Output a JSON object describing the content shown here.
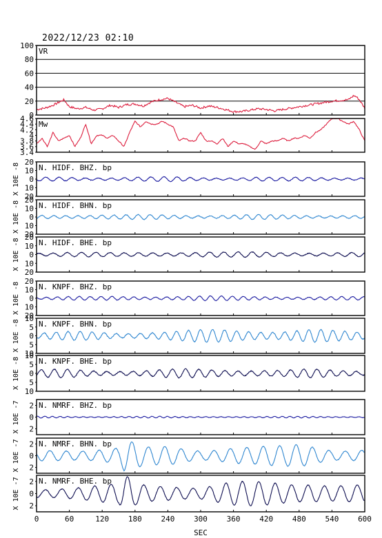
{
  "title": "2022/12/23 02:10",
  "colors": {
    "vr": "#dc1c3c",
    "mw": "#dc1c3c",
    "bhz": "#1a1aa0",
    "bhn": "#2e86d0",
    "bhe": "#0d0d50"
  },
  "chart_data": {
    "type": "line",
    "xlabel": "SEC",
    "xlim": [
      0,
      600
    ],
    "xticks": [
      0,
      60,
      120,
      180,
      240,
      300,
      360,
      420,
      480,
      540,
      600
    ],
    "panels": [
      {
        "name": "VR",
        "key": "vr",
        "color": "vr",
        "ylim": [
          0,
          100
        ],
        "yticks": [
          0,
          20,
          40,
          60,
          80,
          100
        ],
        "grid": true,
        "ylabel": "",
        "series": {
          "x": [
            0,
            15,
            30,
            45,
            50,
            60,
            75,
            90,
            105,
            120,
            135,
            150,
            165,
            180,
            195,
            210,
            225,
            240,
            255,
            270,
            285,
            300,
            315,
            330,
            345,
            360,
            375,
            390,
            405,
            420,
            435,
            450,
            465,
            480,
            495,
            510,
            525,
            540,
            555,
            570,
            580,
            585,
            590,
            595,
            600
          ],
          "y": [
            8,
            10,
            14,
            20,
            22,
            12,
            9,
            11,
            7,
            9,
            14,
            11,
            15,
            16,
            13,
            19,
            22,
            24,
            18,
            12,
            14,
            10,
            13,
            11,
            8,
            5,
            5,
            7,
            9,
            8,
            6,
            8,
            10,
            12,
            14,
            16,
            18,
            20,
            21,
            22,
            28,
            26,
            22,
            16,
            10
          ]
        }
      },
      {
        "name": "Mw",
        "key": "mw",
        "color": "mw",
        "ylim": [
          3.4,
          4.6
        ],
        "yticks": [
          3.4,
          3.6,
          3.8,
          4.0,
          4.2,
          4.4,
          4.6
        ],
        "grid": false,
        "ylabel": "",
        "series": {
          "x": [
            0,
            10,
            20,
            30,
            40,
            50,
            60,
            70,
            80,
            90,
            100,
            110,
            120,
            130,
            140,
            150,
            160,
            170,
            180,
            190,
            200,
            210,
            220,
            230,
            240,
            250,
            260,
            270,
            280,
            290,
            300,
            310,
            320,
            330,
            340,
            350,
            360,
            370,
            380,
            390,
            400,
            410,
            420,
            430,
            440,
            450,
            460,
            470,
            480,
            490,
            500,
            510,
            520,
            530,
            540,
            550,
            560,
            570,
            580,
            590,
            600
          ],
          "y": [
            3.7,
            3.9,
            3.6,
            4.1,
            3.8,
            3.9,
            4.0,
            3.6,
            3.9,
            4.4,
            3.7,
            4.0,
            4.0,
            3.9,
            4.0,
            3.8,
            3.6,
            4.1,
            4.5,
            4.3,
            4.5,
            4.4,
            4.4,
            4.5,
            4.4,
            4.3,
            3.8,
            3.9,
            3.8,
            3.8,
            4.1,
            3.8,
            3.8,
            3.7,
            3.9,
            3.6,
            3.8,
            3.7,
            3.7,
            3.6,
            3.5,
            3.8,
            3.7,
            3.8,
            3.8,
            3.9,
            3.8,
            3.9,
            3.9,
            4.0,
            3.9,
            4.1,
            4.2,
            4.4,
            4.6,
            4.6,
            4.5,
            4.4,
            4.5,
            4.2,
            3.8
          ]
        }
      },
      {
        "name": "N. HIDF. BHZ. bp",
        "key": "hidf_bhz",
        "color": "bhz",
        "ylim": [
          -20,
          20
        ],
        "yticks": [
          -20,
          -10,
          0,
          10,
          20
        ],
        "grid": false,
        "ylabel": "X 10E -8",
        "wave": {
          "x": [
            0,
            50,
            100,
            150,
            200,
            250,
            300,
            350,
            400,
            450,
            500,
            550,
            600
          ],
          "amp": [
            2,
            3,
            2.5,
            2,
            2.5,
            3,
            2.5,
            2,
            2.5,
            2,
            2.5,
            2,
            2.5
          ],
          "period": 24,
          "noise": 0.6
        }
      },
      {
        "name": "N. HIDF. BHN. bp",
        "key": "hidf_bhn",
        "color": "bhn",
        "ylim": [
          -20,
          20
        ],
        "yticks": [
          -20,
          -10,
          0,
          10,
          20
        ],
        "grid": false,
        "ylabel": "X 10E -8",
        "wave": {
          "x": [
            0,
            50,
            100,
            150,
            200,
            250,
            300,
            350,
            400,
            450,
            500,
            550,
            600
          ],
          "amp": [
            2.5,
            3,
            3,
            2.5,
            3,
            3,
            2.5,
            2.5,
            3,
            2.5,
            2.5,
            2.5,
            2
          ],
          "period": 22,
          "noise": 0.6
        }
      },
      {
        "name": "N. HIDF. BHE. bp",
        "key": "hidf_bhe",
        "color": "bhe",
        "ylim": [
          -20,
          20
        ],
        "yticks": [
          -20,
          -10,
          0,
          10,
          20
        ],
        "grid": false,
        "ylabel": "X 10E -8",
        "wave": {
          "x": [
            0,
            50,
            100,
            150,
            200,
            250,
            300,
            350,
            400,
            450,
            500,
            550,
            600
          ],
          "amp": [
            2.5,
            4,
            3,
            2,
            2.5,
            3.5,
            4,
            3,
            3,
            3,
            3,
            2.5,
            2.5
          ],
          "period": 26,
          "noise": 0.7
        }
      },
      {
        "name": "N. KNPF. BHZ. bp",
        "key": "knpf_bhz",
        "color": "bhz",
        "ylim": [
          -20,
          20
        ],
        "yticks": [
          -20,
          -10,
          0,
          10,
          20
        ],
        "grid": false,
        "ylabel": "X 10E -8",
        "wave": {
          "x": [
            0,
            50,
            100,
            150,
            200,
            250,
            300,
            350,
            400,
            450,
            500,
            550,
            600
          ],
          "amp": [
            2,
            2.5,
            2,
            2.5,
            2.5,
            3,
            3,
            2.5,
            2.5,
            2.5,
            2,
            2,
            2
          ],
          "period": 20,
          "noise": 0.5
        }
      },
      {
        "name": "N. KNPF. BHN. bp",
        "key": "knpf_bhn",
        "color": "bhn",
        "ylim": [
          -10,
          10
        ],
        "yticks": [
          -10,
          -5,
          0,
          5,
          10
        ],
        "grid": false,
        "ylabel": "X 10E -8",
        "wave": {
          "x": [
            0,
            50,
            100,
            150,
            200,
            250,
            300,
            350,
            400,
            450,
            500,
            550,
            600
          ],
          "amp": [
            2,
            2.5,
            2.5,
            2,
            3,
            3,
            3.5,
            4,
            4,
            3.5,
            4,
            3,
            2.5
          ],
          "period": 22,
          "noise": 0.4
        }
      },
      {
        "name": "N. KNPF. BHE. bp",
        "key": "knpf_bhe",
        "color": "bhe",
        "ylim": [
          -10,
          10
        ],
        "yticks": [
          -10,
          -5,
          0,
          5,
          10
        ],
        "grid": false,
        "ylabel": "X 10E -8",
        "wave": {
          "x": [
            0,
            50,
            100,
            150,
            200,
            250,
            300,
            350,
            400,
            450,
            500,
            550,
            600
          ],
          "amp": [
            2,
            2.5,
            2,
            2,
            2,
            2.5,
            2.5,
            2.5,
            2.5,
            2,
            2.5,
            2,
            2
          ],
          "period": 24,
          "noise": 0.4
        }
      },
      {
        "name": "N. NMRF. BHZ. bp",
        "key": "nmrf_bhz",
        "color": "bhz",
        "ylim": [
          -3,
          3
        ],
        "yticks": [
          -2,
          0,
          2
        ],
        "grid": false,
        "ylabel": "X 10E -7",
        "wave": {
          "x": [
            0,
            50,
            100,
            150,
            200,
            250,
            300,
            350,
            400,
            450,
            500,
            550,
            600
          ],
          "amp": [
            0.15,
            0.15,
            0.12,
            0.15,
            0.15,
            0.12,
            0.12,
            0.15,
            0.12,
            0.12,
            0.15,
            0.12,
            0.15
          ],
          "period": 14,
          "noise": 0.05
        }
      },
      {
        "name": "N. NMRF. BHN. bp",
        "key": "nmrf_bhn",
        "color": "bhn",
        "ylim": [
          -3,
          3
        ],
        "yticks": [
          -2,
          0,
          2
        ],
        "grid": false,
        "ylabel": "X 10E -7",
        "wave": {
          "x": [
            0,
            50,
            100,
            150,
            160,
            170,
            180,
            200,
            250,
            300,
            350,
            400,
            450,
            480,
            500,
            550,
            600
          ],
          "amp": [
            1,
            1.5,
            1.5,
            1.5,
            2.8,
            2.6,
            2.2,
            1.5,
            2,
            1.5,
            1.8,
            1.5,
            1.8,
            2.5,
            2.5,
            1.5,
            1.2
          ],
          "period": 30,
          "noise": 0.1
        }
      },
      {
        "name": "N. NMRF. BHE. bp",
        "key": "nmrf_bhe",
        "color": "bhe",
        "ylim": [
          -3,
          3
        ],
        "yticks": [
          -2,
          0,
          2
        ],
        "grid": false,
        "ylabel": "X 10E -7",
        "wave": {
          "x": [
            0,
            50,
            100,
            150,
            160,
            170,
            180,
            200,
            250,
            300,
            350,
            400,
            450,
            480,
            500,
            550,
            600
          ],
          "amp": [
            1,
            1.5,
            1.5,
            1.6,
            2.8,
            2.8,
            2,
            1.6,
            2,
            1.5,
            2,
            2,
            2.2,
            2.5,
            2.8,
            1.8,
            1.4
          ],
          "period": 30,
          "noise": 0.1
        }
      }
    ]
  }
}
